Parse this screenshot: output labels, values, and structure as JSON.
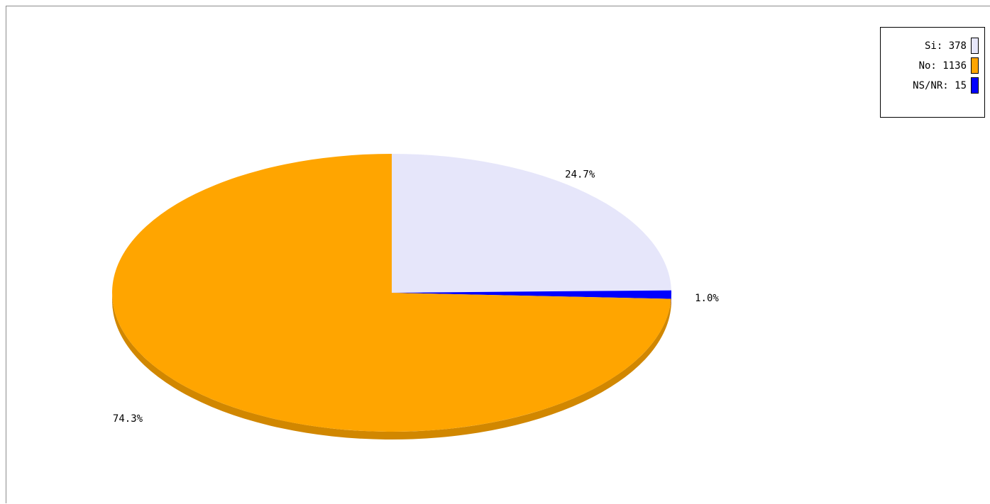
{
  "chart_data": {
    "type": "pie",
    "style": "3d",
    "slices": [
      {
        "label": "Si",
        "value": 378,
        "percent_label": "24.7%",
        "color": "#e6e6fa"
      },
      {
        "label": "No",
        "value": 1136,
        "percent_label": "74.3%",
        "color": "#ffa500"
      },
      {
        "label": "NS/NR",
        "value": 15,
        "percent_label": "1.0%",
        "color": "#0000ff"
      }
    ],
    "legend": {
      "placement": "top-right",
      "entries": [
        "Si: 378",
        "No: 1136",
        "NS/NR: 15"
      ]
    }
  }
}
